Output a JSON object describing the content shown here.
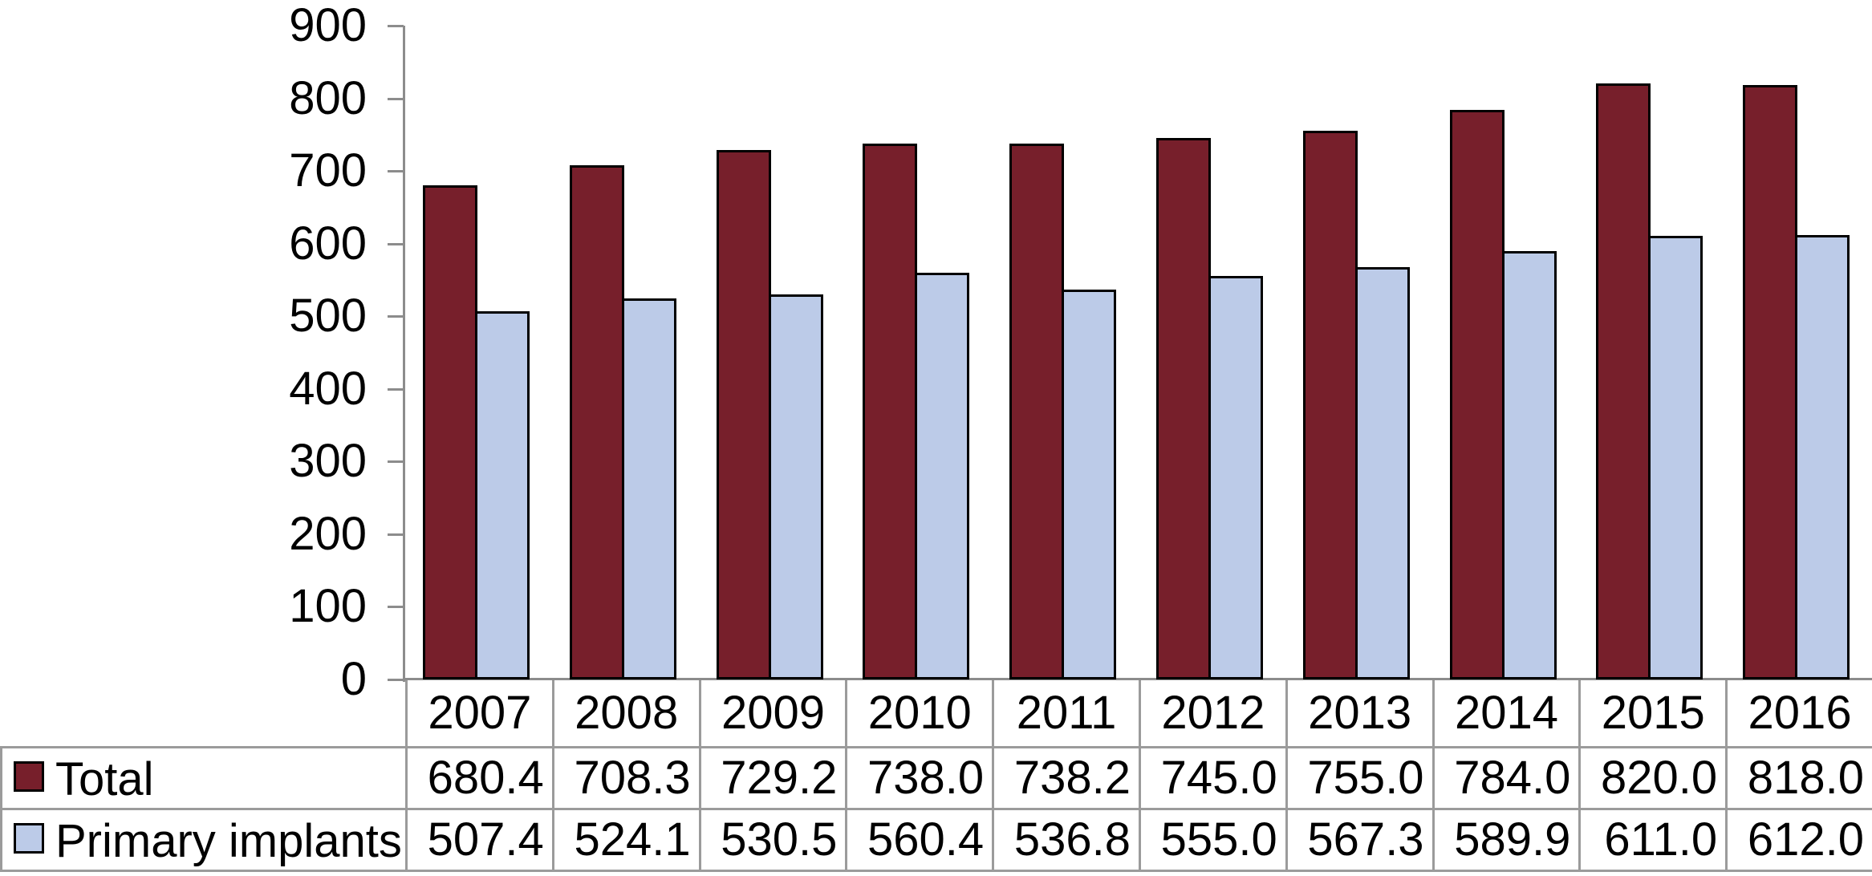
{
  "figure": {
    "background": "#ffffff",
    "axis_color": "#8C8C8C",
    "table_border_color": "#9B9B9B",
    "bar_outline_color": "#000000",
    "text_color": "#000000"
  },
  "chart_data": {
    "type": "bar",
    "title": "",
    "xlabel": "",
    "ylabel": "",
    "categories": [
      "2007",
      "2008",
      "2009",
      "2010",
      "2011",
      "2012",
      "2013",
      "2014",
      "2015",
      "2016"
    ],
    "series": [
      {
        "name": "Total",
        "color": "#771F2B",
        "values": [
          680.4,
          708.3,
          729.2,
          738.0,
          738.2,
          745.0,
          755.0,
          784.0,
          820.0,
          818.0
        ]
      },
      {
        "name": "Primary implants",
        "color": "#BCCBE8",
        "values": [
          507.4,
          524.1,
          530.5,
          560.4,
          536.8,
          555.0,
          567.3,
          589.9,
          611.0,
          612.0
        ]
      }
    ],
    "ylim": [
      0,
      900
    ],
    "yticks": [
      0,
      100,
      200,
      300,
      400,
      500,
      600,
      700,
      800,
      900
    ],
    "grid": false,
    "legend_position": "data-table-header-column",
    "data_table": true,
    "value_decimals": 1
  }
}
